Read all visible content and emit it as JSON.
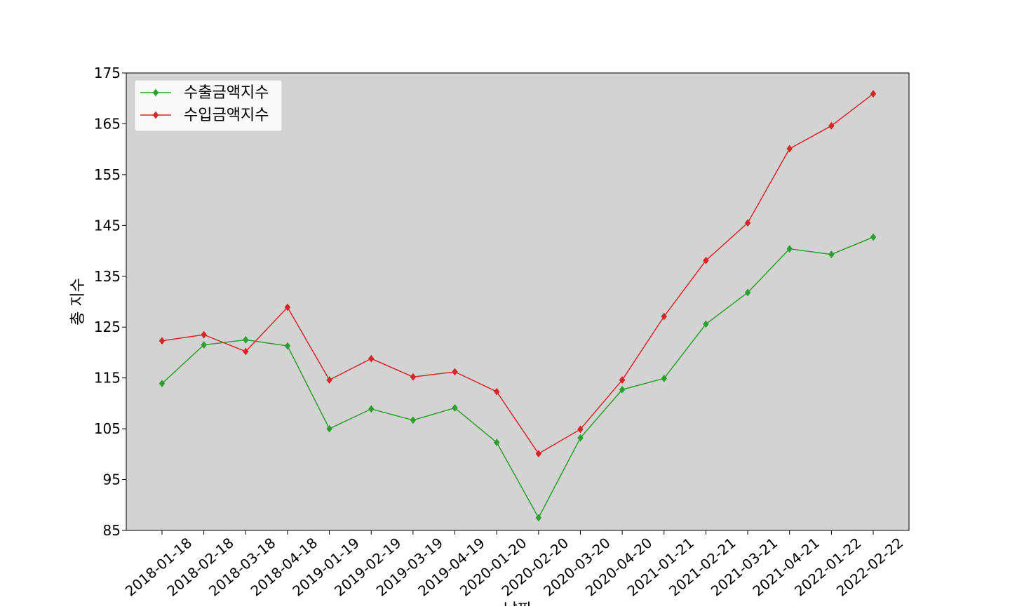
{
  "chart_data": {
    "type": "line",
    "title": "",
    "xlabel": "날짜",
    "ylabel": "총 지수",
    "categories": [
      "2018-01-18",
      "2018-02-18",
      "2018-03-18",
      "2018-04-18",
      "2019-01-19",
      "2019-02-19",
      "2019-03-19",
      "2019-04-19",
      "2020-01-20",
      "2020-02-20",
      "2020-03-20",
      "2020-04-20",
      "2021-01-21",
      "2021-02-21",
      "2021-03-21",
      "2021-04-21",
      "2022-01-22",
      "2022-02-22"
    ],
    "yticks": [
      85,
      95,
      105,
      115,
      125,
      135,
      145,
      155,
      165,
      175
    ],
    "ylim": [
      85,
      175
    ],
    "grid": false,
    "legend_position": "top-left",
    "background": "#d3d3d3",
    "series": [
      {
        "name": "수출금액지수",
        "color": "#2ca02c",
        "marker": "diamond",
        "values": [
          113.9,
          121.5,
          122.5,
          121.3,
          105.0,
          108.9,
          106.7,
          109.1,
          102.3,
          87.5,
          103.2,
          112.7,
          114.9,
          125.6,
          131.8,
          140.4,
          139.3,
          142.7
        ]
      },
      {
        "name": "수입금액지수",
        "color": "#d62728",
        "marker": "diamond",
        "values": [
          122.3,
          123.5,
          120.2,
          128.9,
          114.6,
          118.8,
          115.2,
          116.2,
          112.3,
          100.1,
          104.9,
          114.6,
          127.1,
          138.1,
          145.5,
          160.1,
          164.6,
          170.9
        ]
      }
    ]
  }
}
